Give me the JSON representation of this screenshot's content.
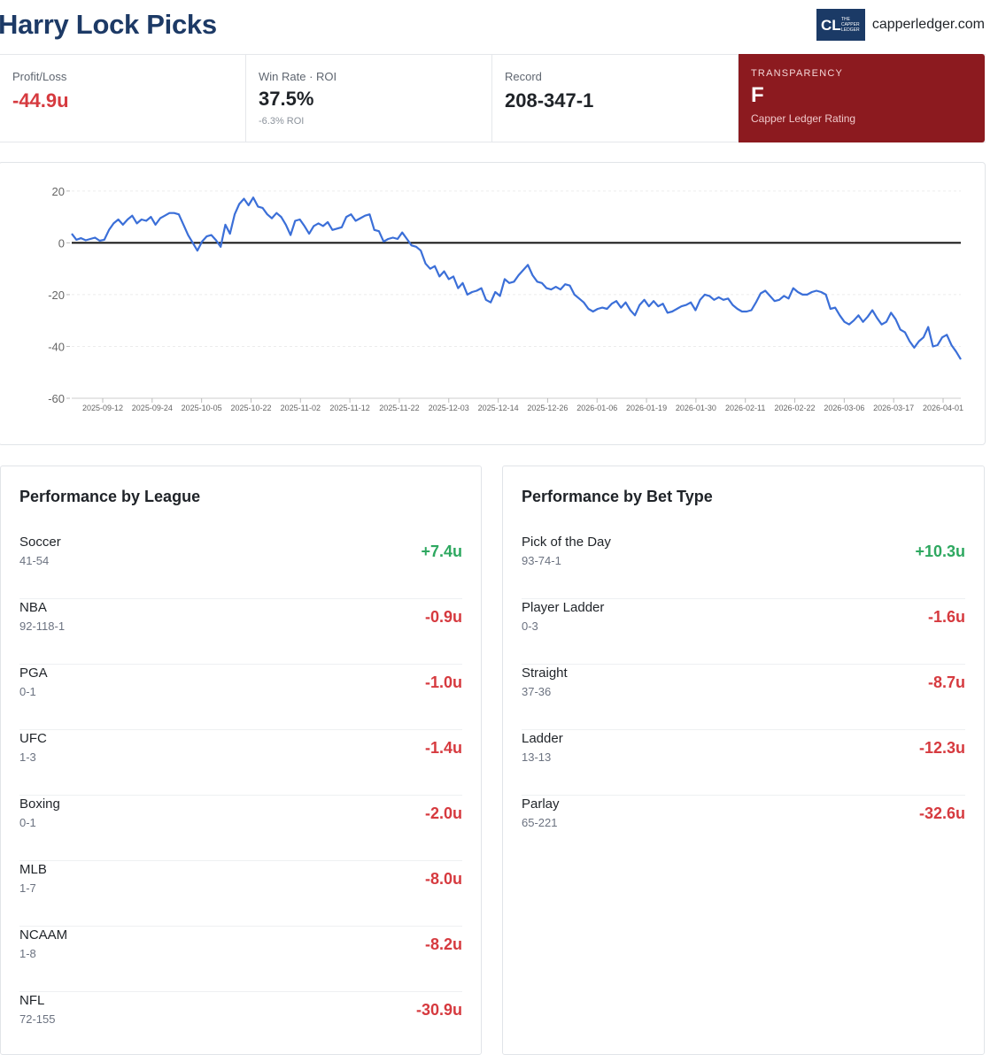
{
  "header": {
    "title": "Harry Lock Picks",
    "brand_domain": "capperledger.com",
    "logo_text_top": "THE",
    "logo_text_mid": "CAPPER",
    "logo_text_bot": "LEDGER",
    "logo_initials": "CL"
  },
  "stats": {
    "profit": {
      "label": "Profit/Loss",
      "value": "-44.9u"
    },
    "winrate": {
      "label": "Win Rate · ROI",
      "value": "37.5%",
      "sub": "-6.3% ROI"
    },
    "record": {
      "label": "Record",
      "value": "208-347-1"
    },
    "transparency": {
      "label": "TRANSPARENCY",
      "grade": "F",
      "sub": "Capper Ledger Rating"
    }
  },
  "chart_data": {
    "type": "line",
    "title": "",
    "xlabel": "",
    "ylabel": "",
    "ylim": [
      -60,
      22
    ],
    "yticks": [
      20,
      0,
      -20,
      -40,
      -60
    ],
    "xticks": [
      "2025-09-12",
      "2025-09-24",
      "2025-10-05",
      "2025-10-22",
      "2025-11-02",
      "2025-11-12",
      "2025-11-22",
      "2025-12-03",
      "2025-12-14",
      "2025-12-26",
      "2026-01-06",
      "2026-01-19",
      "2026-01-30",
      "2026-02-11",
      "2026-02-22",
      "2026-03-06",
      "2026-03-17",
      "2026-04-01"
    ],
    "zero_line": true,
    "grid": true,
    "color": "#3b6fd8",
    "series": [
      {
        "values": [
          3.5,
          1.2,
          1.8,
          1.0,
          1.5,
          2.0,
          0.8,
          1.2,
          5.0,
          7.5,
          9.0,
          7.0,
          9.0,
          10.5,
          7.5,
          9.0,
          8.5,
          10.0,
          7.0,
          9.5,
          10.5,
          11.5,
          11.5,
          11.0,
          7.0,
          3.0,
          0,
          -3.0,
          0.5,
          2.5,
          3.0,
          1.0,
          -1.5,
          7.0,
          3.5,
          11.0,
          15.0,
          17.0,
          14.5,
          17.5,
          14.0,
          13.5,
          11.0,
          9.5,
          11.5,
          10.0,
          7.0,
          3.0,
          8.5,
          9.0,
          6.5,
          3.5,
          6.5,
          7.5,
          6.5,
          8.0,
          5.0,
          5.5,
          6.0,
          10.0,
          11.0,
          8.5,
          9.5,
          10.5,
          11.0,
          5.0,
          4.5,
          0.5,
          1.5,
          2.0,
          1.5,
          4.0,
          1.5,
          -1.0,
          -1.5,
          -3.0,
          -8.0,
          -10.0,
          -9.0,
          -13.0,
          -11.0,
          -14.0,
          -13.0,
          -17.5,
          -15.5,
          -20.0,
          -19.0,
          -18.5,
          -17.5,
          -22.0,
          -23.0,
          -19.0,
          -20.5,
          -14.0,
          -15.5,
          -15.0,
          -12.5,
          -10.5,
          -8.5,
          -12.5,
          -15.0,
          -15.5,
          -17.5,
          -18.0,
          -17.0,
          -18.0,
          -16.0,
          -16.5,
          -20.0,
          -21.5,
          -23.0,
          -25.5,
          -26.5,
          -25.5,
          -25.0,
          -25.5,
          -23.5,
          -22.5,
          -25.0,
          -23.0,
          -26.0,
          -28.0,
          -24.0,
          -22.0,
          -24.5,
          -22.5,
          -24.5,
          -23.5,
          -27.0,
          -26.5,
          -25.5,
          -24.5,
          -24.0,
          -23.0,
          -26.0,
          -22.0,
          -20.0,
          -20.5,
          -22.0,
          -21.0,
          -22.0,
          -21.5,
          -24.0,
          -25.5,
          -26.5,
          -26.5,
          -26.0,
          -23.0,
          -19.5,
          -18.5,
          -20.5,
          -22.5,
          -22.0,
          -20.5,
          -21.5,
          -17.5,
          -19.0,
          -20.0,
          -20.0,
          -19.0,
          -18.5,
          -19.0,
          -20.0,
          -25.5,
          -25.0,
          -28.0,
          -30.5,
          -31.5,
          -30.0,
          -28.0,
          -30.5,
          -28.5,
          -26.0,
          -29.0,
          -31.5,
          -30.5,
          -27.0,
          -29.5,
          -33.5,
          -34.5,
          -38.0,
          -40.5,
          -38.0,
          -36.5,
          -32.5,
          -40.0,
          -39.5,
          -36.5,
          -35.5,
          -39.5,
          -42.0,
          -45.0
        ]
      }
    ]
  },
  "league": {
    "title": "Performance by League",
    "rows": [
      {
        "name": "Soccer",
        "record": "41-54",
        "value": "+7.4u",
        "sign": "pos"
      },
      {
        "name": "NBA",
        "record": "92-118-1",
        "value": "-0.9u",
        "sign": "neg"
      },
      {
        "name": "PGA",
        "record": "0-1",
        "value": "-1.0u",
        "sign": "neg"
      },
      {
        "name": "UFC",
        "record": "1-3",
        "value": "-1.4u",
        "sign": "neg"
      },
      {
        "name": "Boxing",
        "record": "0-1",
        "value": "-2.0u",
        "sign": "neg"
      },
      {
        "name": "MLB",
        "record": "1-7",
        "value": "-8.0u",
        "sign": "neg"
      },
      {
        "name": "NCAAM",
        "record": "1-8",
        "value": "-8.2u",
        "sign": "neg"
      },
      {
        "name": "NFL",
        "record": "72-155",
        "value": "-30.9u",
        "sign": "neg"
      }
    ]
  },
  "bettype": {
    "title": "Performance by Bet Type",
    "rows": [
      {
        "name": "Pick of the Day",
        "record": "93-74-1",
        "value": "+10.3u",
        "sign": "pos"
      },
      {
        "name": "Player Ladder",
        "record": "0-3",
        "value": "-1.6u",
        "sign": "neg"
      },
      {
        "name": "Straight",
        "record": "37-36",
        "value": "-8.7u",
        "sign": "neg"
      },
      {
        "name": "Ladder",
        "record": "13-13",
        "value": "-12.3u",
        "sign": "neg"
      },
      {
        "name": "Parlay",
        "record": "65-221",
        "value": "-32.6u",
        "sign": "neg"
      }
    ]
  }
}
